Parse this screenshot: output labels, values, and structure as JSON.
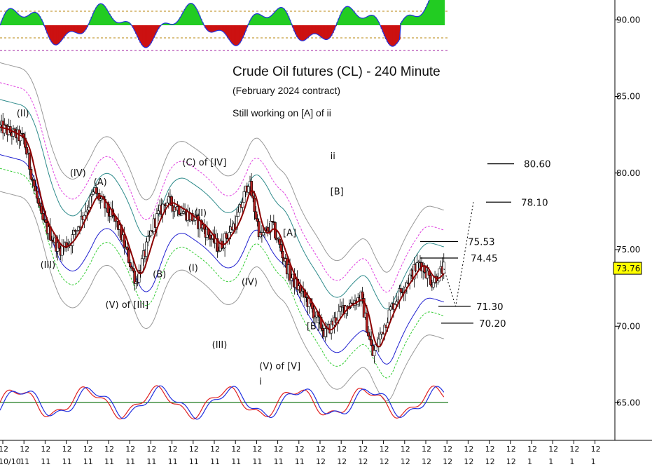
{
  "chart_data": {
    "type": "candlestick",
    "title": "Crude Oil futures (CL) - 240 Minute",
    "subtitle": "(February 2024 contract)",
    "note": "Still working on [A] of ii",
    "ylim": [
      62,
      92
    ],
    "y_ticks": [
      "65.00",
      "70.00",
      "75.00",
      "80.00",
      "85.00",
      "90.00"
    ],
    "last_price": "73.76",
    "x_tick_row1": "12",
    "x_tick_row2": [
      "10/10",
      "11",
      "11",
      "11",
      "11",
      "11",
      "11",
      "11",
      "11",
      "11",
      "11",
      "11",
      "11",
      "11",
      "11",
      "12",
      "12",
      "12",
      "12",
      "12",
      "12",
      "12",
      "12",
      "12",
      "12",
      "1",
      "1",
      "1",
      "1"
    ],
    "key_points": [
      {
        "t": 0,
        "price": 83.0
      },
      {
        "t": 4,
        "price": 82.2
      },
      {
        "t": 7,
        "price": 77.0
      },
      {
        "t": 10,
        "price": 75.0
      },
      {
        "t": 12,
        "price": 75.6
      },
      {
        "t": 16,
        "price": 78.8
      },
      {
        "t": 20,
        "price": 76.5
      },
      {
        "t": 23,
        "price": 72.9
      },
      {
        "t": 26,
        "price": 76.7
      },
      {
        "t": 28,
        "price": 78.2
      },
      {
        "t": 31,
        "price": 77.5
      },
      {
        "t": 34,
        "price": 76.6
      },
      {
        "t": 37,
        "price": 75.1
      },
      {
        "t": 40,
        "price": 76.9
      },
      {
        "t": 42,
        "price": 79.5
      },
      {
        "t": 44,
        "price": 75.8
      },
      {
        "t": 46,
        "price": 76.6
      },
      {
        "t": 49,
        "price": 73.3
      },
      {
        "t": 52,
        "price": 71.6
      },
      {
        "t": 55,
        "price": 69.5
      },
      {
        "t": 58,
        "price": 71.2
      },
      {
        "t": 61,
        "price": 71.9
      },
      {
        "t": 63,
        "price": 68.1
      },
      {
        "t": 66,
        "price": 71.1
      },
      {
        "t": 68,
        "price": 72.5
      },
      {
        "t": 71,
        "price": 74.2
      },
      {
        "t": 73,
        "price": 72.9
      },
      {
        "t": 75,
        "price": 73.76
      }
    ],
    "wave_labels": [
      {
        "text": "(II)",
        "t": 4,
        "price": 83.7
      },
      {
        "text": "(III)",
        "t": 8,
        "price": 73.8
      },
      {
        "text": "(IV)",
        "t": 13,
        "price": 79.8
      },
      {
        "text": "(A)",
        "t": 17,
        "price": 79.2
      },
      {
        "text": "(V) of [III]",
        "t": 19,
        "price": 71.2
      },
      {
        "text": "(B)",
        "t": 27,
        "price": 73.2
      },
      {
        "text": "(C) of [IV]",
        "t": 32,
        "price": 80.5
      },
      {
        "text": "(II)",
        "t": 34,
        "price": 77.2
      },
      {
        "text": "(I)",
        "t": 33,
        "price": 73.6
      },
      {
        "text": "(III)",
        "t": 37,
        "price": 68.6
      },
      {
        "text": "(IV)",
        "t": 42,
        "price": 72.7
      },
      {
        "text": "(V) of [V]",
        "t": 45,
        "price": 67.2
      },
      {
        "text": "i",
        "t": 45,
        "price": 66.2
      },
      {
        "text": "[A]",
        "t": 49,
        "price": 75.9
      },
      {
        "text": "[B]",
        "t": 53,
        "price": 69.8
      },
      {
        "text": "[B]",
        "t": 57,
        "price": 78.6
      },
      {
        "text": "ii",
        "t": 57,
        "price": 80.9
      }
    ],
    "levels": [
      {
        "text": "80.60",
        "price": 80.6
      },
      {
        "text": "78.10",
        "price": 78.1
      },
      {
        "text": "75.53",
        "price": 75.53
      },
      {
        "text": "74.45",
        "price": 74.45
      },
      {
        "text": "71.30",
        "price": 71.3
      },
      {
        "text": "70.20",
        "price": 70.2
      }
    ],
    "projection": [
      {
        "t": 75,
        "price": 73.76
      },
      {
        "t": 77,
        "price": 71.3
      },
      {
        "t": 80,
        "price": 78.1
      }
    ],
    "colors": {
      "up_candle": "#ffffff",
      "down_candle": "#b22222",
      "ma_fast": "#8b0000",
      "band_teal": "#2e8b8b",
      "band_magenta": "#e040e0",
      "band_green": "#32cd32",
      "band_blue": "#2020d0",
      "envelope_gray": "#999999",
      "hist_up": "#22cc22",
      "hist_down": "#cc1111",
      "osc_red": "#e02020",
      "osc_blue": "#2030e0",
      "osc_zero": "#1f7a1f",
      "last_price_bg": "#ffff00"
    }
  }
}
